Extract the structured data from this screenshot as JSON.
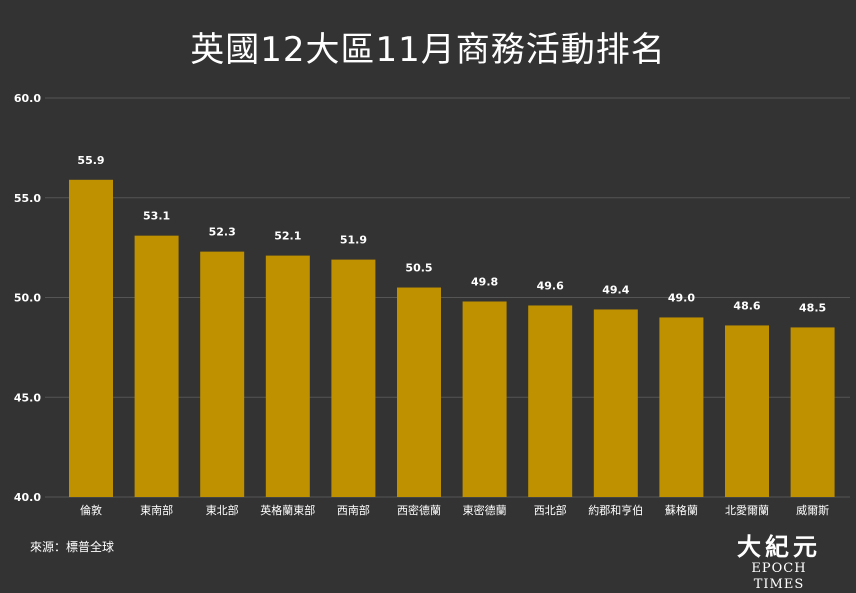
{
  "chart_data": {
    "type": "bar",
    "title": "英國12大區11月商務活動排名",
    "categories": [
      "倫敦",
      "東南部",
      "東北部",
      "英格蘭東部",
      "西南部",
      "西密德蘭",
      "東密德蘭",
      "西北部",
      "約郡和亨伯",
      "蘇格蘭",
      "北愛爾蘭",
      "威爾斯"
    ],
    "values": [
      55.9,
      53.1,
      52.3,
      52.1,
      51.9,
      50.5,
      49.8,
      49.6,
      49.4,
      49.0,
      48.6,
      48.5
    ],
    "value_labels": [
      "55.9",
      "53.1",
      "52.3",
      "52.1",
      "51.9",
      "50.5",
      "49.8",
      "49.6",
      "49.4",
      "49.0",
      "48.6",
      "48.5"
    ],
    "ylim": [
      40,
      60
    ],
    "yticks": [
      "40.0",
      "45.0",
      "50.0",
      "55.0",
      "60.0"
    ],
    "xlabel": "",
    "ylabel": "",
    "grid": true,
    "legend": "none",
    "bar_color": "#bf9000"
  },
  "footer": {
    "source": "來源：標普全球",
    "logo_chinese": "大紀元",
    "logo_english": "EPOCH TIMES"
  }
}
